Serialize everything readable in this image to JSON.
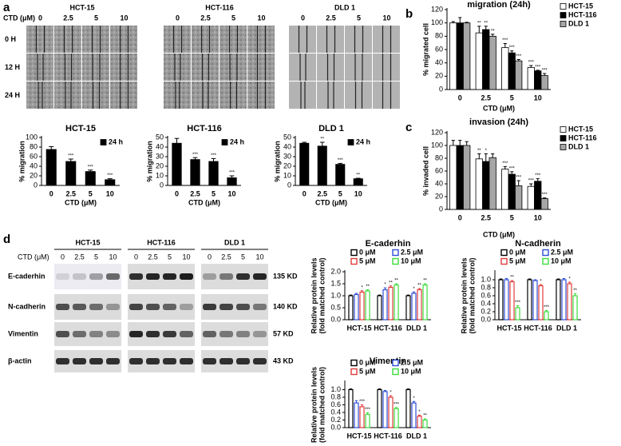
{
  "panel_labels": [
    "a",
    "b",
    "c",
    "d"
  ],
  "scratch": {
    "cell_lines": [
      "HCT-15",
      "HCT-116",
      "DLD 1"
    ],
    "conc_label": "CTD (μM)",
    "concs": [
      "0",
      "2.5",
      "5",
      "10"
    ],
    "times": [
      "0 H",
      "12 H",
      "24 H"
    ]
  },
  "western": {
    "cell_lines": [
      "HCT-15",
      "HCT-116",
      "DLD 1"
    ],
    "conc_label": "CTD (μM)",
    "concs": [
      "0",
      "2.5",
      "5",
      "10"
    ],
    "proteins": [
      "E-caderhin",
      "N-cadherin",
      "Vimentin",
      "β-actin"
    ],
    "sizes": [
      "135 KD",
      "140 KD",
      "57 KD",
      "43 KD"
    ]
  },
  "chart_data": [
    {
      "type": "bar",
      "title": "HCT-15",
      "xlabel": "CTD (μM)",
      "ylabel": "% migration",
      "legend": "upper right",
      "categories": [
        "0",
        "2.5",
        "5",
        "10"
      ],
      "ylim": [
        0,
        100
      ],
      "yticks": [
        0,
        20,
        40,
        60,
        80,
        100
      ],
      "series": [
        {
          "name": "24 h",
          "color": "#000000",
          "values": [
            75,
            50,
            29,
            12
          ],
          "errors": [
            6,
            5,
            3,
            2
          ],
          "annotations": [
            null,
            "***",
            "***",
            "***"
          ]
        }
      ]
    },
    {
      "type": "bar",
      "title": "HCT-116",
      "xlabel": "CTD (μM)",
      "ylabel": "% migration",
      "legend": "upper right",
      "categories": [
        "0",
        "2.5",
        "5",
        "10"
      ],
      "ylim": [
        0,
        50
      ],
      "yticks": [
        0,
        10,
        20,
        30,
        40,
        50
      ],
      "series": [
        {
          "name": "24 h",
          "color": "#000000",
          "values": [
            44,
            27,
            25,
            8
          ],
          "errors": [
            5,
            2,
            3,
            2
          ],
          "annotations": [
            null,
            "***",
            "***",
            "***"
          ]
        }
      ]
    },
    {
      "type": "bar",
      "title": "DLD 1",
      "xlabel": "CTD (μM)",
      "ylabel": "% migration",
      "legend": "upper right",
      "categories": [
        "0",
        "2.5",
        "5",
        "10"
      ],
      "ylim": [
        0,
        50
      ],
      "yticks": [
        0,
        10,
        20,
        30,
        40,
        50
      ],
      "series": [
        {
          "name": "24 h",
          "color": "#000000",
          "values": [
            44,
            41,
            22,
            7
          ],
          "errors": [
            1,
            4,
            1,
            0.5
          ],
          "annotations": [
            null,
            "**",
            "***",
            "**"
          ]
        }
      ]
    },
    {
      "type": "bar",
      "title": "migration (24h)",
      "xlabel": "CTD (μM)",
      "ylabel": "% migrated cell",
      "legend": "right",
      "categories": [
        "0",
        "2.5",
        "5",
        "10"
      ],
      "ylim": [
        0,
        120
      ],
      "yticks": [
        0,
        20,
        40,
        60,
        80,
        100,
        120
      ],
      "series": [
        {
          "name": "HCT-15",
          "color": "#ffffff",
          "values": [
            100,
            85,
            63,
            33
          ],
          "errors": [
            2,
            10,
            6,
            3
          ],
          "annotations": [
            null,
            "**",
            "***",
            "***"
          ]
        },
        {
          "name": "HCT-116",
          "color": "#000000",
          "values": [
            100,
            90,
            55,
            28
          ],
          "errors": [
            8,
            5,
            3,
            1
          ],
          "annotations": [
            null,
            "**",
            "***",
            "***"
          ]
        },
        {
          "name": "DLD 1",
          "color": "#a6a6a6",
          "values": [
            100,
            80,
            43,
            21
          ],
          "errors": [
            1,
            3,
            2,
            3
          ],
          "annotations": [
            null,
            "**",
            "***",
            "***"
          ]
        }
      ]
    },
    {
      "type": "bar",
      "title": "invasion (24h)",
      "xlabel": "CTD (μM)",
      "ylabel": "% invaded cell",
      "legend": "right",
      "categories": [
        "0",
        "2.5",
        "5",
        "10"
      ],
      "ylim": [
        0,
        120
      ],
      "yticks": [
        0,
        20,
        40,
        60,
        80,
        100,
        120
      ],
      "series": [
        {
          "name": "HCT-15",
          "color": "#ffffff",
          "values": [
            100,
            79,
            63,
            36
          ],
          "errors": [
            8,
            8,
            4,
            4
          ],
          "annotations": [
            null,
            "**",
            "***",
            "***"
          ]
        },
        {
          "name": "HCT-116",
          "color": "#000000",
          "values": [
            100,
            75,
            55,
            44
          ],
          "errors": [
            8,
            12,
            4,
            4
          ],
          "annotations": [
            null,
            "*",
            "***",
            "***"
          ]
        },
        {
          "name": "DLD 1",
          "color": "#a6a6a6",
          "values": [
            100,
            81,
            37,
            17
          ],
          "errors": [
            6,
            6,
            8,
            1
          ],
          "annotations": [
            null,
            null,
            "***",
            "***"
          ]
        }
      ]
    },
    {
      "type": "bar",
      "bar_style": "outline",
      "title": "E-caderhin",
      "ylabel": [
        "Relative protein levels",
        "(fold matched control)"
      ],
      "legend": "top",
      "categories": [
        "HCT-15",
        "HCT-116",
        "DLD 1"
      ],
      "ylim": [
        0,
        2
      ],
      "yticks": [
        {
          "value": 0,
          "label": "0.0"
        },
        0.5,
        {
          "value": 1,
          "label": "1.0"
        },
        1.5,
        {
          "value": 2,
          "label": "2.0"
        }
      ],
      "series": [
        {
          "name": "0 μM",
          "color": "#000000",
          "values": [
            1,
            1,
            1
          ],
          "errors": [
            0.03,
            0.03,
            0.03
          ],
          "annotations": [
            null,
            null,
            null
          ]
        },
        {
          "name": "2.5 μM",
          "color": "#2f4fd6",
          "values": [
            1.05,
            1.25,
            1.1
          ],
          "errors": [
            0.05,
            0.08,
            0.06
          ],
          "annotations": [
            null,
            "*",
            "*"
          ]
        },
        {
          "name": "5 μM",
          "color": "#e23b3b",
          "values": [
            1.15,
            1.35,
            1.25
          ],
          "errors": [
            0.06,
            0.06,
            0.05
          ],
          "annotations": [
            "*",
            "**",
            "**"
          ]
        },
        {
          "name": "10 μM",
          "color": "#3ddc3d",
          "values": [
            1.2,
            1.45,
            1.45
          ],
          "errors": [
            0.05,
            0.05,
            0.05
          ],
          "annotations": [
            "**",
            "**",
            "**"
          ]
        }
      ]
    },
    {
      "type": "bar",
      "bar_style": "outline",
      "title": "N-cadherin",
      "ylabel": [
        "Relative protein levels",
        "(fold matched control)"
      ],
      "legend": "top",
      "categories": [
        "HCT-15",
        "HCT-116",
        "DLD 1"
      ],
      "ylim": [
        0,
        1.2
      ],
      "yticks": [
        {
          "value": 0,
          "label": "0.0"
        },
        0.2,
        0.4,
        0.6,
        0.8,
        {
          "value": 1,
          "label": "1.0"
        }
      ],
      "series": [
        {
          "name": "0 μM",
          "color": "#000000",
          "values": [
            1,
            1,
            1
          ],
          "errors": [
            0.02,
            0.02,
            0.02
          ],
          "annotations": [
            null,
            null,
            null
          ]
        },
        {
          "name": "2.5 μM",
          "color": "#2f4fd6",
          "values": [
            1,
            0.98,
            1
          ],
          "errors": [
            0.03,
            0.02,
            0.03
          ],
          "annotations": [
            null,
            null,
            null
          ]
        },
        {
          "name": "5 μM",
          "color": "#e23b3b",
          "values": [
            0.95,
            0.85,
            0.9
          ],
          "errors": [
            0.03,
            0.03,
            0.04
          ],
          "annotations": [
            "**",
            "*",
            "*"
          ]
        },
        {
          "name": "10 μM",
          "color": "#3ddc3d",
          "values": [
            0.3,
            0.2,
            0.6
          ],
          "errors": [
            0.05,
            0.03,
            0.05
          ],
          "annotations": [
            "***",
            "***",
            "**"
          ]
        }
      ]
    },
    {
      "type": "bar",
      "bar_style": "outline",
      "title": "Vimentin",
      "ylabel": [
        "Relative protein levels",
        "(fold matched control)"
      ],
      "legend": "top",
      "categories": [
        "HCT-15",
        "HCT-116",
        "DLD 1"
      ],
      "ylim": [
        0,
        1.2
      ],
      "yticks": [
        {
          "value": 0,
          "label": "0.0"
        },
        0.2,
        0.4,
        0.6,
        0.8,
        {
          "value": 1,
          "label": "1.0"
        }
      ],
      "series": [
        {
          "name": "0 μM",
          "color": "#000000",
          "values": [
            1,
            1,
            1
          ],
          "errors": [
            0.02,
            0.02,
            0.02
          ],
          "annotations": [
            null,
            null,
            null
          ]
        },
        {
          "name": "2.5 μM",
          "color": "#2f4fd6",
          "values": [
            0.65,
            0.95,
            0.65
          ],
          "errors": [
            0.06,
            0.03,
            0.04
          ],
          "annotations": [
            null,
            null,
            "*"
          ]
        },
        {
          "name": "5 μM",
          "color": "#e23b3b",
          "values": [
            0.55,
            0.8,
            0.3
          ],
          "errors": [
            0.05,
            0.04,
            0.03
          ],
          "annotations": [
            "***",
            "*",
            "*"
          ]
        },
        {
          "name": "10 μM",
          "color": "#3ddc3d",
          "values": [
            0.35,
            0.5,
            0.2
          ],
          "errors": [
            0.04,
            0.03,
            0.03
          ],
          "annotations": [
            "***",
            "***",
            "**"
          ]
        }
      ]
    }
  ]
}
